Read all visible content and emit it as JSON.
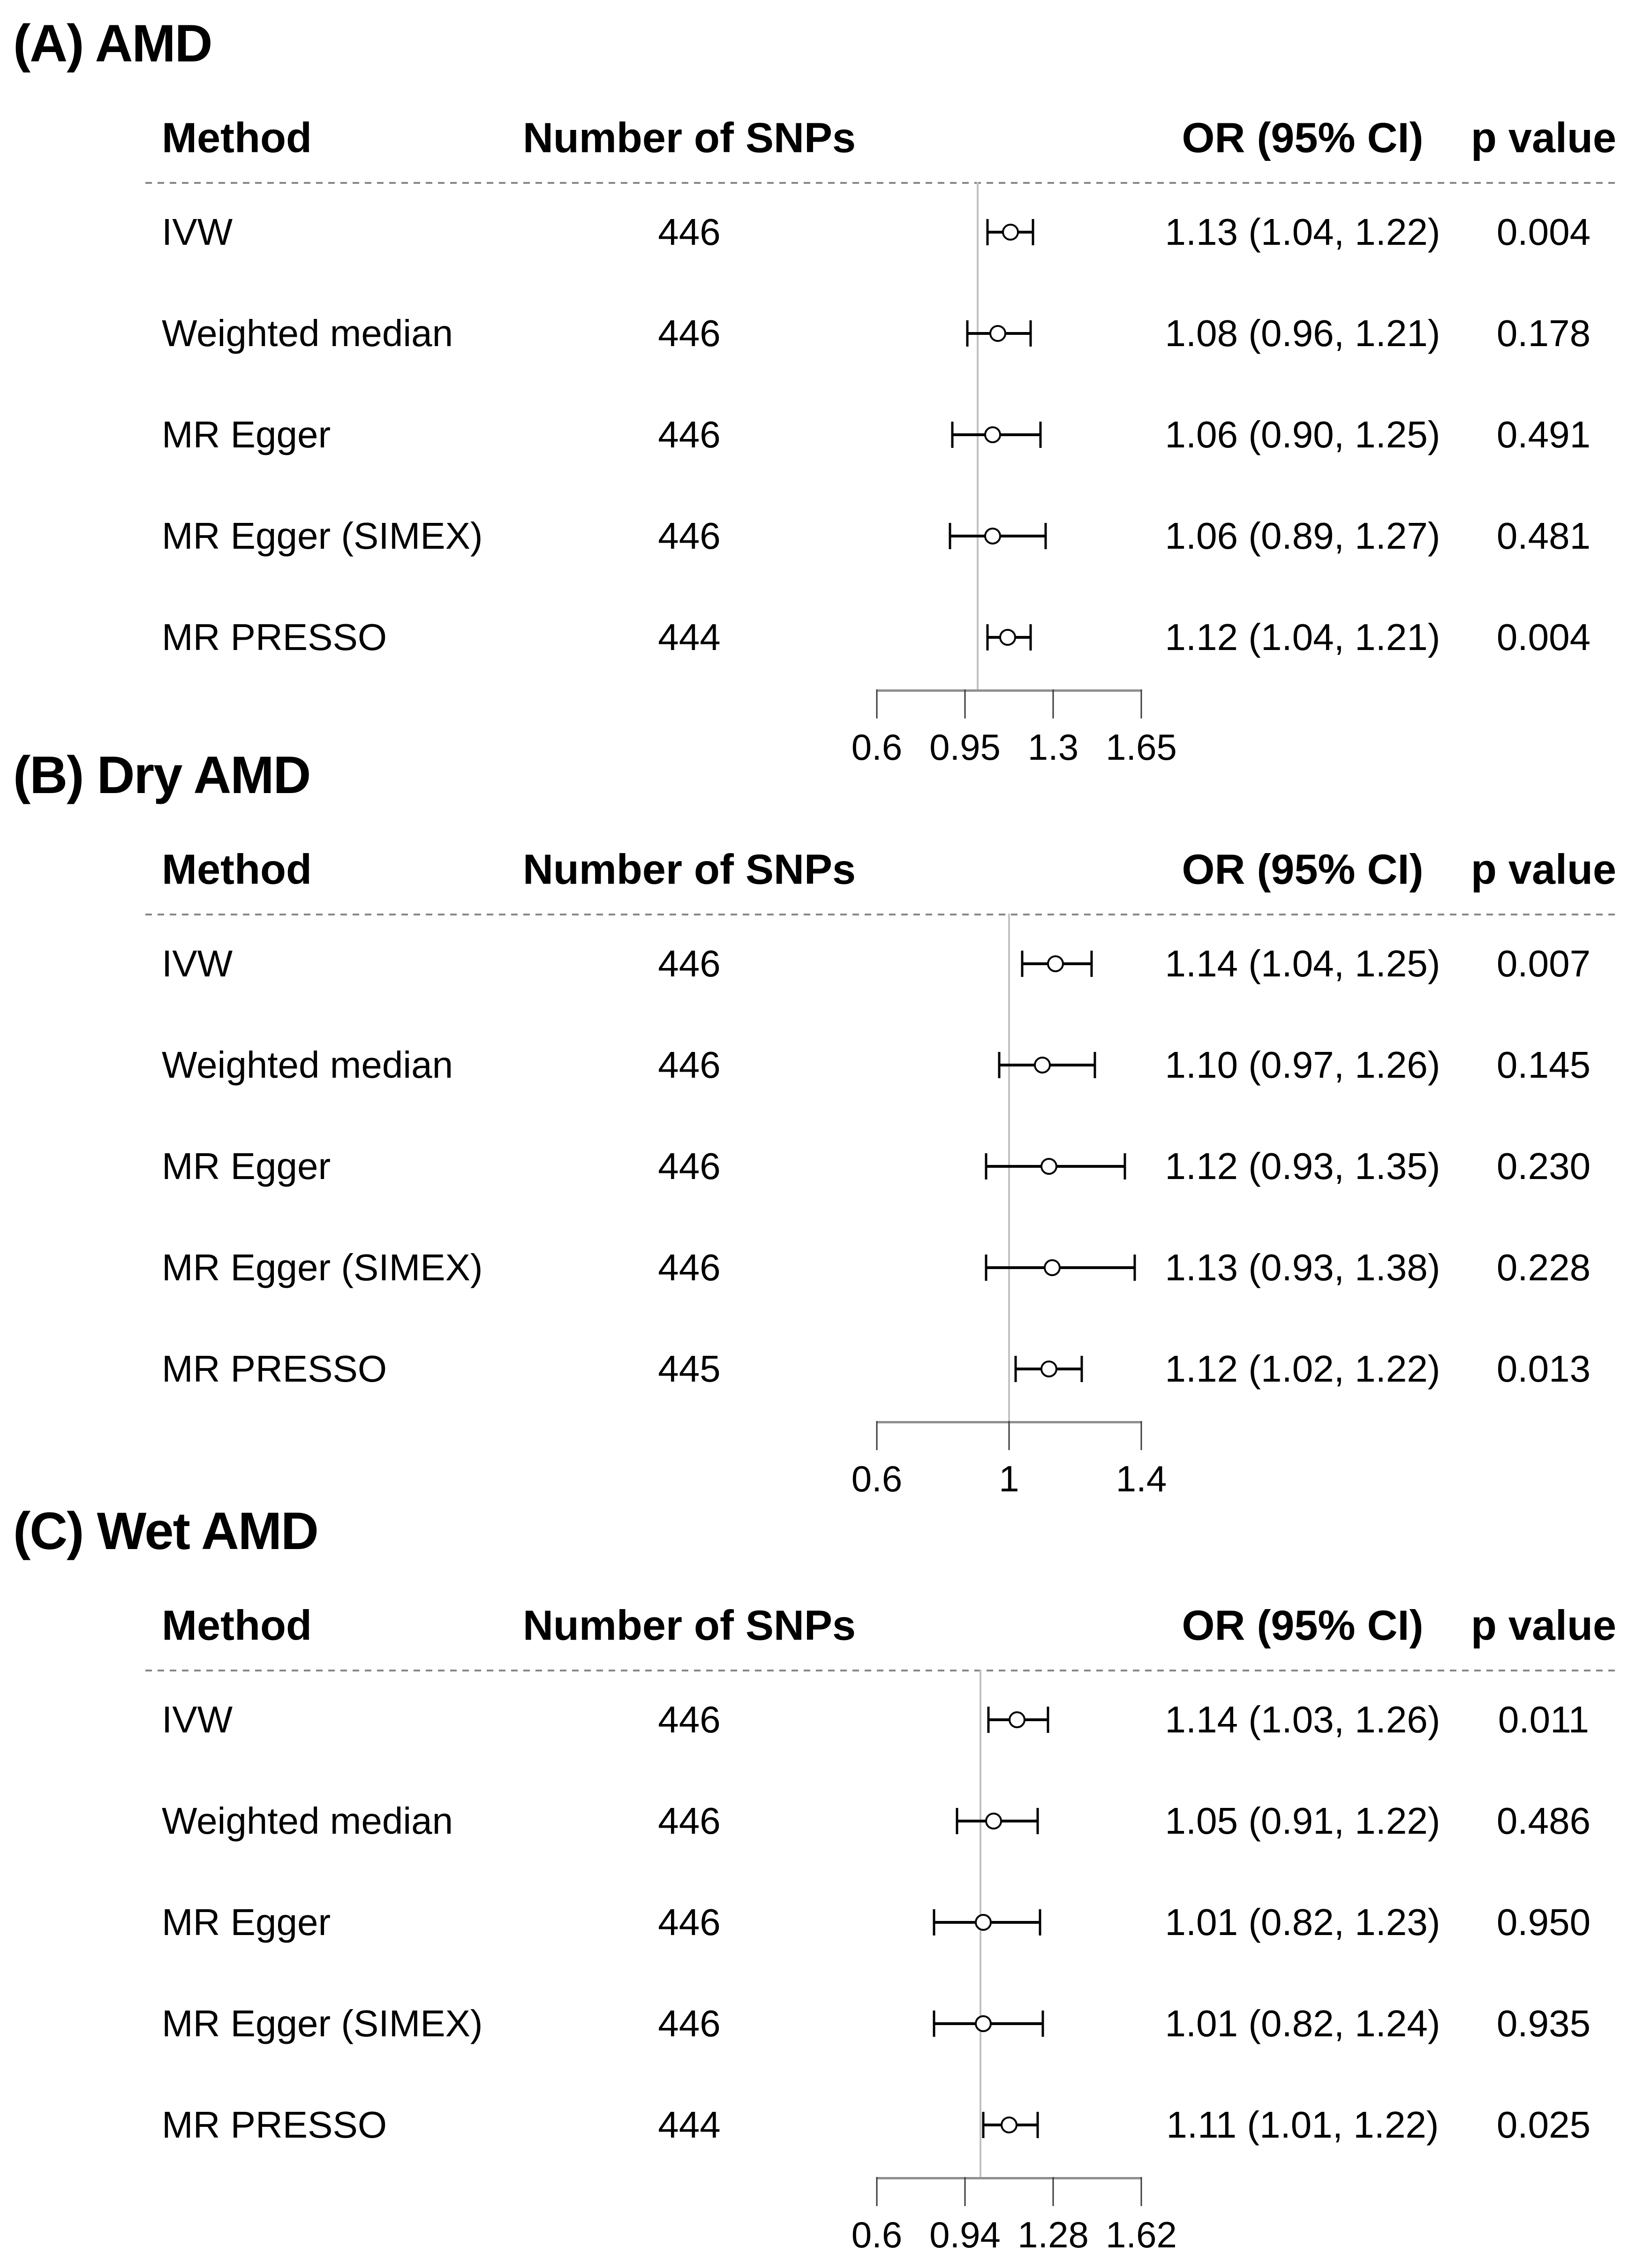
{
  "figure_title": "Forest plots of Mendelian randomization estimates",
  "columns": {
    "method": "Method",
    "snps": "Number of SNPs",
    "or": "OR (95% CI)",
    "p": "p value"
  },
  "colors": {
    "text": "#000000",
    "reference_line": "#c2c2c2",
    "axis_bar": "#8f8f8f",
    "axis_tick": "#3c3c3c",
    "dotted_separator": "#878787",
    "marker": "#000000",
    "marker_fill": "#ffffff"
  },
  "panels": [
    {
      "label": "(A) AMD",
      "axis": {
        "min": 0.6,
        "max": 1.65,
        "ref_value": 1,
        "ticks": [
          {
            "value": 0.6,
            "label": "0.6"
          },
          {
            "value": 0.95,
            "label": "0.95"
          },
          {
            "value": 1.3,
            "label": "1.3"
          },
          {
            "value": 1.65,
            "label": "1.65"
          }
        ]
      },
      "rows": [
        {
          "method": "IVW",
          "snps": "446",
          "or": 1.13,
          "ci_low": 1.04,
          "ci_high": 1.22,
          "or_text": "1.13 (1.04, 1.22)",
          "p": "0.004"
        },
        {
          "method": "Weighted median",
          "snps": "446",
          "or": 1.08,
          "ci_low": 0.96,
          "ci_high": 1.21,
          "or_text": "1.08 (0.96, 1.21)",
          "p": "0.178"
        },
        {
          "method": "MR Egger",
          "snps": "446",
          "or": 1.06,
          "ci_low": 0.9,
          "ci_high": 1.25,
          "or_text": "1.06 (0.90, 1.25)",
          "p": "0.491"
        },
        {
          "method": "MR Egger (SIMEX)",
          "snps": "446",
          "or": 1.06,
          "ci_low": 0.89,
          "ci_high": 1.27,
          "or_text": "1.06 (0.89, 1.27)",
          "p": "0.481"
        },
        {
          "method": "MR PRESSO",
          "snps": "444",
          "or": 1.12,
          "ci_low": 1.04,
          "ci_high": 1.21,
          "or_text": "1.12 (1.04, 1.21)",
          "p": "0.004"
        }
      ]
    },
    {
      "label": "(B) Dry AMD",
      "axis": {
        "min": 0.6,
        "max": 1.4,
        "ref_value": 1,
        "ticks": [
          {
            "value": 0.6,
            "label": "0.6"
          },
          {
            "value": 1,
            "label": "1"
          },
          {
            "value": 1.4,
            "label": "1.4"
          }
        ]
      },
      "rows": [
        {
          "method": "IVW",
          "snps": "446",
          "or": 1.14,
          "ci_low": 1.04,
          "ci_high": 1.25,
          "or_text": "1.14 (1.04, 1.25)",
          "p": "0.007"
        },
        {
          "method": "Weighted median",
          "snps": "446",
          "or": 1.1,
          "ci_low": 0.97,
          "ci_high": 1.26,
          "or_text": "1.10 (0.97, 1.26)",
          "p": "0.145"
        },
        {
          "method": "MR Egger",
          "snps": "446",
          "or": 1.12,
          "ci_low": 0.93,
          "ci_high": 1.35,
          "or_text": "1.12 (0.93, 1.35)",
          "p": "0.230"
        },
        {
          "method": "MR Egger (SIMEX)",
          "snps": "446",
          "or": 1.13,
          "ci_low": 0.93,
          "ci_high": 1.38,
          "or_text": "1.13 (0.93, 1.38)",
          "p": "0.228"
        },
        {
          "method": "MR PRESSO",
          "snps": "445",
          "or": 1.12,
          "ci_low": 1.02,
          "ci_high": 1.22,
          "or_text": "1.12 (1.02, 1.22)",
          "p": "0.013"
        }
      ]
    },
    {
      "label": "(C) Wet AMD",
      "axis": {
        "min": 0.6,
        "max": 1.62,
        "ref_value": 1,
        "ticks": [
          {
            "value": 0.6,
            "label": "0.6"
          },
          {
            "value": 0.94,
            "label": "0.94"
          },
          {
            "value": 1.28,
            "label": "1.28"
          },
          {
            "value": 1.62,
            "label": "1.62"
          }
        ]
      },
      "rows": [
        {
          "method": "IVW",
          "snps": "446",
          "or": 1.14,
          "ci_low": 1.03,
          "ci_high": 1.26,
          "or_text": "1.14 (1.03, 1.26)",
          "p": "0.011"
        },
        {
          "method": "Weighted median",
          "snps": "446",
          "or": 1.05,
          "ci_low": 0.91,
          "ci_high": 1.22,
          "or_text": "1.05 (0.91, 1.22)",
          "p": "0.486"
        },
        {
          "method": "MR Egger",
          "snps": "446",
          "or": 1.01,
          "ci_low": 0.82,
          "ci_high": 1.23,
          "or_text": "1.01 (0.82, 1.23)",
          "p": "0.950"
        },
        {
          "method": "MR Egger (SIMEX)",
          "snps": "446",
          "or": 1.01,
          "ci_low": 0.82,
          "ci_high": 1.24,
          "or_text": "1.01 (0.82, 1.24)",
          "p": "0.935"
        },
        {
          "method": "MR PRESSO",
          "snps": "444",
          "or": 1.11,
          "ci_low": 1.01,
          "ci_high": 1.22,
          "or_text": "1.11 (1.01, 1.22)",
          "p": "0.025"
        }
      ]
    }
  ],
  "chart_data": [
    {
      "type": "scatter",
      "subtype": "forest-plot",
      "title": "(A) AMD",
      "xlabel": "OR (95% CI)",
      "xlim": [
        0.6,
        1.65
      ],
      "x_ticks": [
        0.6,
        0.95,
        1.3,
        1.65
      ],
      "reference_line_x": 1,
      "categories": [
        "IVW",
        "Weighted median",
        "MR Egger",
        "MR Egger (SIMEX)",
        "MR PRESSO"
      ],
      "n_snps": [
        446,
        446,
        446,
        446,
        444
      ],
      "or": [
        1.13,
        1.08,
        1.06,
        1.06,
        1.12
      ],
      "ci_low": [
        1.04,
        0.96,
        0.9,
        0.89,
        1.04
      ],
      "ci_high": [
        1.22,
        1.21,
        1.25,
        1.27,
        1.21
      ],
      "p_values": [
        0.004,
        0.178,
        0.491,
        0.481,
        0.004
      ],
      "grid": false,
      "legend": false
    },
    {
      "type": "scatter",
      "subtype": "forest-plot",
      "title": "(B) Dry AMD",
      "xlabel": "OR (95% CI)",
      "xlim": [
        0.6,
        1.4
      ],
      "x_ticks": [
        0.6,
        1,
        1.4
      ],
      "reference_line_x": 1,
      "categories": [
        "IVW",
        "Weighted median",
        "MR Egger",
        "MR Egger (SIMEX)",
        "MR PRESSO"
      ],
      "n_snps": [
        446,
        446,
        446,
        446,
        445
      ],
      "or": [
        1.14,
        1.1,
        1.12,
        1.13,
        1.12
      ],
      "ci_low": [
        1.04,
        0.97,
        0.93,
        0.93,
        1.02
      ],
      "ci_high": [
        1.25,
        1.26,
        1.35,
        1.38,
        1.22
      ],
      "p_values": [
        0.007,
        0.145,
        0.23,
        0.228,
        0.013
      ],
      "grid": false,
      "legend": false
    },
    {
      "type": "scatter",
      "subtype": "forest-plot",
      "title": "(C) Wet AMD",
      "xlabel": "OR (95% CI)",
      "xlim": [
        0.6,
        1.62
      ],
      "x_ticks": [
        0.6,
        0.94,
        1.28,
        1.62
      ],
      "reference_line_x": 1,
      "categories": [
        "IVW",
        "Weighted median",
        "MR Egger",
        "MR Egger (SIMEX)",
        "MR PRESSO"
      ],
      "n_snps": [
        446,
        446,
        446,
        446,
        444
      ],
      "or": [
        1.14,
        1.05,
        1.01,
        1.01,
        1.11
      ],
      "ci_low": [
        1.03,
        0.91,
        0.82,
        0.82,
        1.01
      ],
      "ci_high": [
        1.26,
        1.22,
        1.23,
        1.24,
        1.22
      ],
      "p_values": [
        0.011,
        0.486,
        0.95,
        0.935,
        0.025
      ],
      "grid": false,
      "legend": false
    }
  ]
}
